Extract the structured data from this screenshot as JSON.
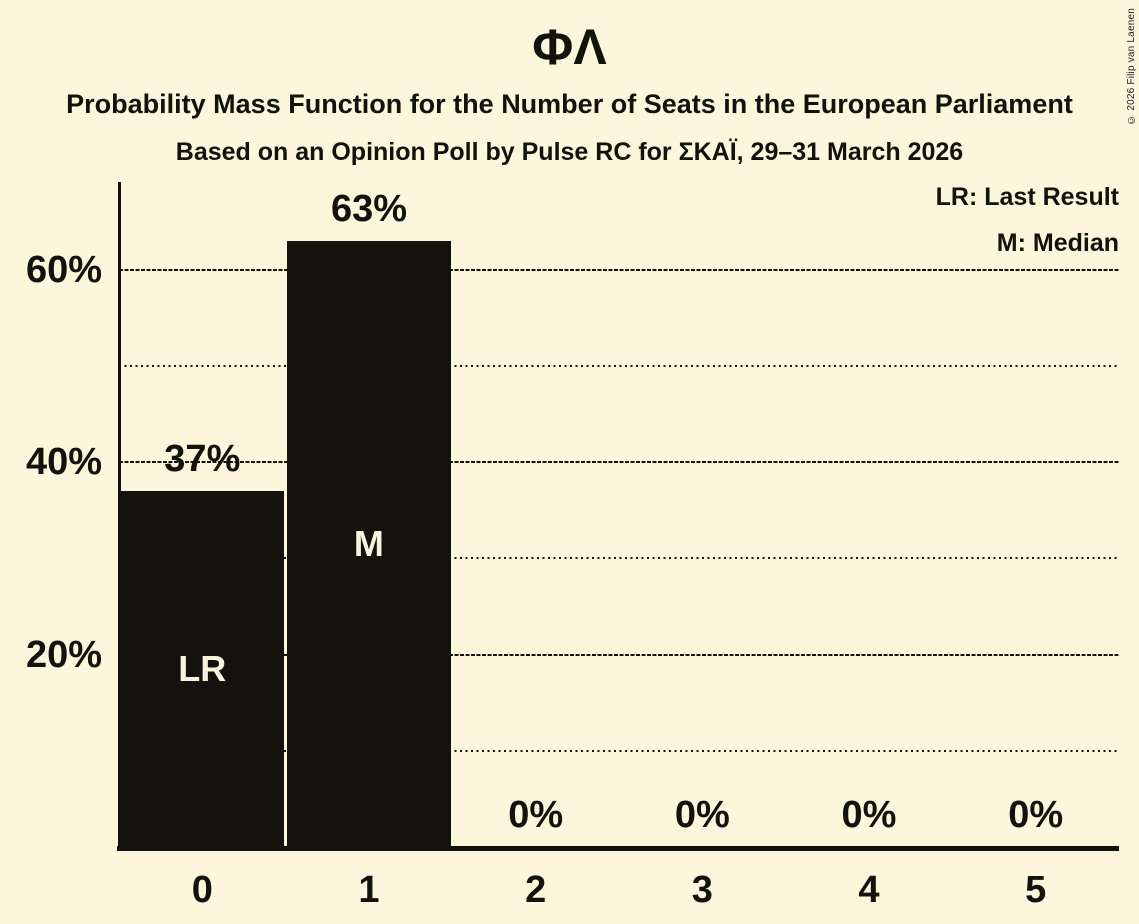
{
  "header": {
    "title": "ΦΛ",
    "subtitle": "Probability Mass Function for the Number of Seats in the European Parliament",
    "subsubtitle": "Based on an Opinion Poll by Pulse RC for ΣΚΑΪ, 29–31 March 2026"
  },
  "copyright": "© 2026 Filip van Laenen",
  "colors": {
    "background": "#FBF6DC",
    "bar": "#14120C",
    "text": "#14120C",
    "bar_label": "#F8F3DE"
  },
  "chart_data": {
    "type": "bar",
    "title": "ΦΛ",
    "categories": [
      "0",
      "1",
      "2",
      "3",
      "4",
      "5"
    ],
    "values": [
      37,
      63,
      0,
      0,
      0,
      0
    ],
    "value_labels": [
      "37%",
      "63%",
      "0%",
      "0%",
      "0%",
      "0%"
    ],
    "bar_annotations": [
      "LR",
      "M",
      "",
      "",
      "",
      ""
    ],
    "xlabel": "",
    "ylabel": "",
    "y_axis": {
      "ticks": [
        {
          "label": "20%",
          "value": 20
        },
        {
          "label": "40%",
          "value": 40
        },
        {
          "label": "60%",
          "value": 60
        }
      ],
      "range": [
        0,
        69
      ],
      "major_gridlines": [
        20,
        40,
        60
      ],
      "minor_gridlines": [
        10,
        30,
        50
      ]
    },
    "legend": {
      "position": "top-right",
      "entries": [
        "LR: Last Result",
        "M: Median"
      ]
    },
    "grid": true
  }
}
